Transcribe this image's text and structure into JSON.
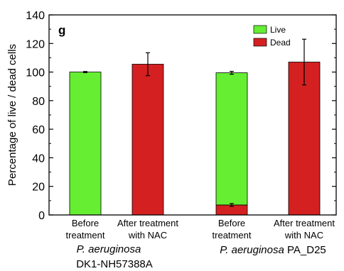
{
  "chart_data": {
    "type": "bar",
    "stacked": true,
    "panel_label": "g",
    "ylabel": "Percentage of live / dead cells",
    "ylim": [
      0,
      140
    ],
    "yticks": [
      "0",
      "20",
      "40",
      "60",
      "80",
      "100",
      "120",
      "140"
    ],
    "categories": [
      {
        "line1": "Before",
        "line2": "treatment"
      },
      {
        "line1": "After treatment",
        "line2": "with NAC"
      },
      {
        "line1": "Before",
        "line2": "treatment"
      },
      {
        "line1": "After treatment",
        "line2": "with NAC"
      }
    ],
    "groups": [
      {
        "line1_italic": "P. aeruginosa",
        "line1_plain": "",
        "line2": "DK1-NH57388A"
      },
      {
        "line1_italic": "P. aeruginosa",
        "line1_plain": " PA_D25",
        "line2": ""
      }
    ],
    "series": [
      {
        "name": "Dead",
        "color": "#d42020",
        "values": [
          0,
          105.5,
          7,
          107
        ]
      },
      {
        "name": "Live",
        "color": "#66ee33",
        "values": [
          100,
          0,
          92.5,
          0
        ]
      }
    ],
    "error_bars": [
      {
        "bar": 0,
        "top": 100,
        "err": 0.4
      },
      {
        "bar": 1,
        "top": 105.5,
        "err": 8
      },
      {
        "bar": 2,
        "top": 99.5,
        "err": 1
      },
      {
        "bar": 2,
        "top": 7,
        "err": 1
      },
      {
        "bar": 3,
        "top": 107,
        "err": 16
      }
    ],
    "legend": [
      {
        "label": "Live",
        "color": "#66ee33"
      },
      {
        "label": "Dead",
        "color": "#d42020"
      }
    ],
    "legend_position": "top-right",
    "grid": false
  }
}
